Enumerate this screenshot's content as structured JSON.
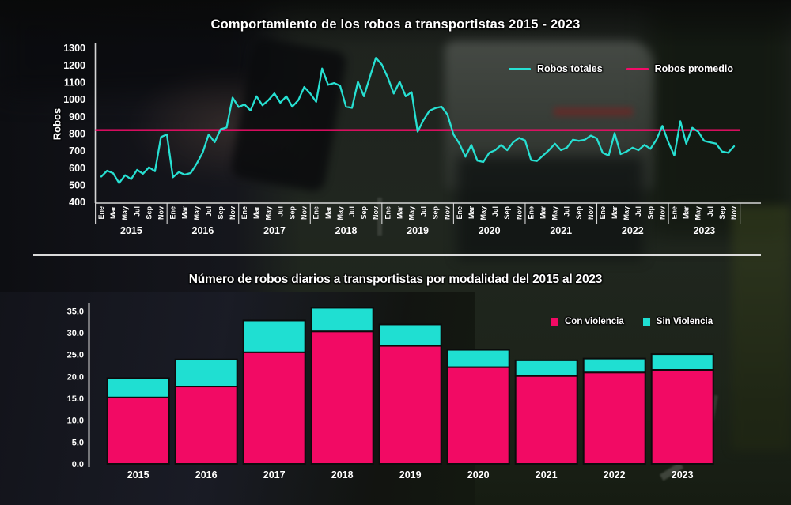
{
  "colors": {
    "total_line": "#27e0d2",
    "average_line": "#f20c68",
    "bar_con_violencia": "#f20a64",
    "bar_sin_violencia": "#1fdfd2",
    "axis": "#d6d6d6",
    "text": "#ffffff",
    "bar_outline": "#0c0c0c"
  },
  "divider": {
    "present": true
  },
  "chart_data": [
    {
      "type": "line",
      "title": "Comportamiento de los robos a transportistas 2015 - 2023",
      "ylabel": "Robos",
      "ylim": [
        400,
        1300
      ],
      "y_ticks": [
        400,
        500,
        600,
        700,
        800,
        900,
        1000,
        1100,
        1200,
        1300
      ],
      "years": [
        "2015",
        "2016",
        "2017",
        "2018",
        "2019",
        "2020",
        "2021",
        "2022",
        "2023"
      ],
      "month_tick_labels": [
        "Ene",
        "Mar",
        "May",
        "Jul",
        "Sep",
        "Nov"
      ],
      "months_per_year": 12,
      "legend_position": "top-right",
      "grid": false,
      "series": [
        {
          "name": "Robos totales",
          "style": "line",
          "first_month": "Ene 2015",
          "last_month": "Nov 2023",
          "values": [
            549,
            583,
            568,
            511,
            557,
            534,
            588,
            565,
            603,
            580,
            780,
            795,
            545,
            575,
            560,
            570,
            625,
            690,
            795,
            750,
            825,
            835,
            1010,
            955,
            970,
            935,
            1018,
            965,
            995,
            1035,
            980,
            1018,
            957,
            995,
            1072,
            1035,
            985,
            1180,
            1085,
            1095,
            1080,
            957,
            950,
            1103,
            1018,
            1130,
            1242,
            1203,
            1126,
            1034,
            1103,
            1018,
            1042,
            811,
            880,
            934,
            949,
            957,
            911,
            795,
            741,
            665,
            734,
            642,
            634,
            688,
            703,
            734,
            703,
            749,
            775,
            760,
            645,
            640,
            672,
            703,
            741,
            703,
            718,
            764,
            757,
            764,
            788,
            772,
            688,
            672,
            803,
            680,
            695,
            718,
            703,
            734,
            711,
            764,
            845,
            749,
            672,
            872,
            741,
            834,
            811,
            757,
            749,
            741,
            695,
            688,
            726
          ]
        },
        {
          "name": "Robos promedio",
          "style": "horizontal-line",
          "value": 820
        }
      ]
    },
    {
      "type": "bar",
      "subtype": "stacked",
      "title": "Número de robos diarios a transportistas por modalidad del 2015 al 2023",
      "categories": [
        "2015",
        "2016",
        "2017",
        "2018",
        "2019",
        "2020",
        "2021",
        "2022",
        "2023"
      ],
      "ylim": [
        0,
        35
      ],
      "y_ticks": [
        "0.0",
        "5.0",
        "10.0",
        "15.0",
        "20.0",
        "25.0",
        "30.0",
        "35.0"
      ],
      "legend_position": "top-right",
      "grid": false,
      "series": [
        {
          "name": "Con violencia",
          "values": [
            15.2,
            17.7,
            25.5,
            30.3,
            27.0,
            22.1,
            20.1,
            20.9,
            21.5
          ]
        },
        {
          "name": "Sin Violencia",
          "values": [
            4.4,
            6.2,
            7.3,
            5.4,
            4.9,
            4.0,
            3.6,
            3.2,
            3.6
          ]
        }
      ],
      "stacked_totals": [
        19.6,
        23.9,
        32.8,
        35.7,
        31.9,
        26.1,
        23.7,
        24.1,
        25.1
      ]
    }
  ]
}
